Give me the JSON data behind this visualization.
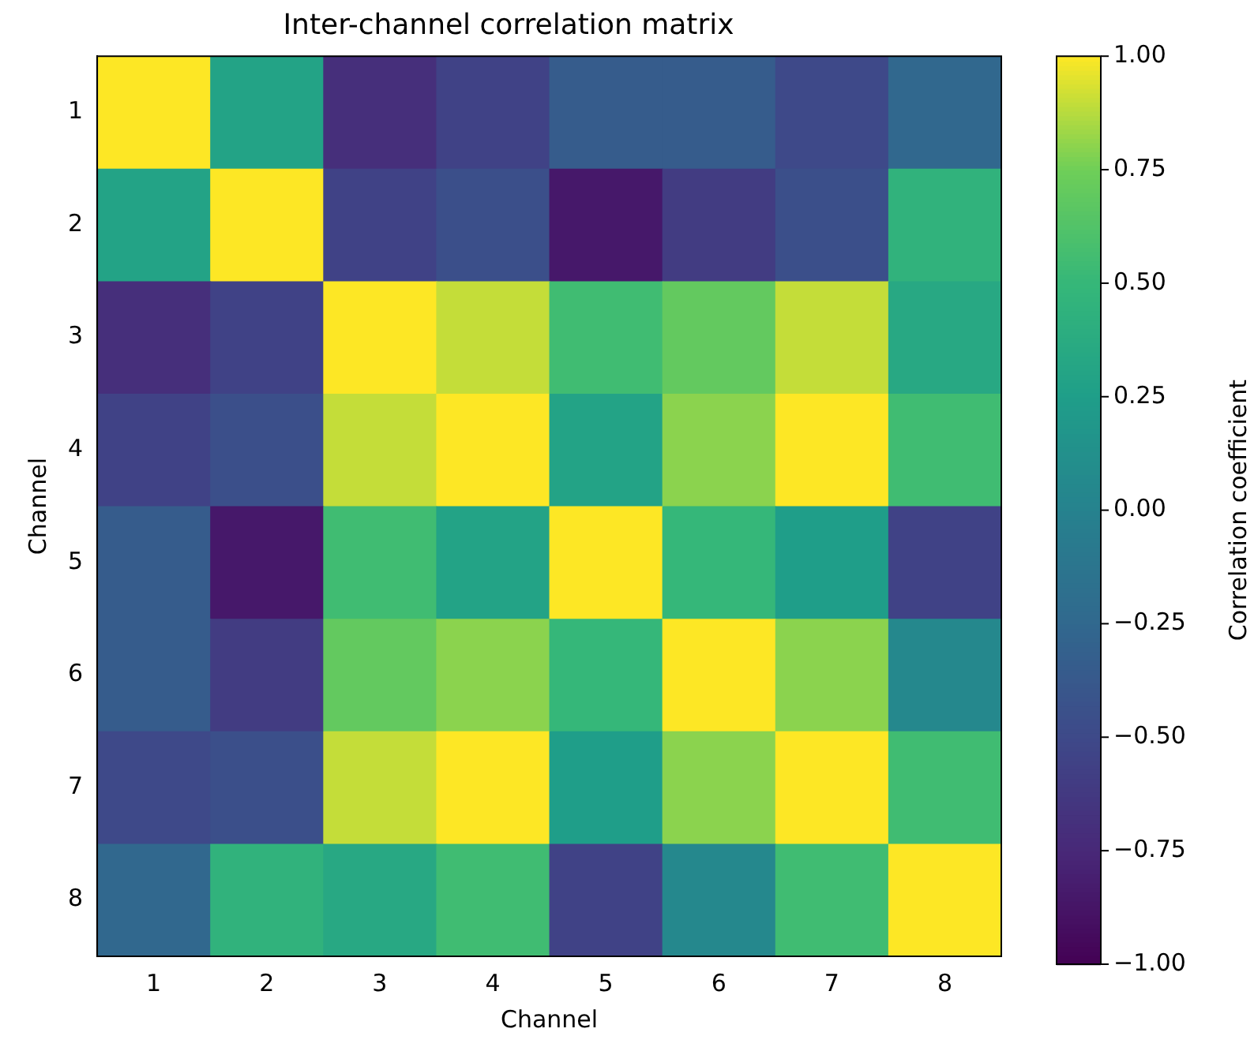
{
  "chart_data": {
    "type": "heatmap",
    "title": "Inter-channel correlation matrix",
    "xlabel": "Channel",
    "ylabel": "Channel",
    "clabel": "Correlation coefficient",
    "categories": [
      "1",
      "2",
      "3",
      "4",
      "5",
      "6",
      "7",
      "8"
    ],
    "y_categories": [
      "1",
      "2",
      "3",
      "4",
      "5",
      "6",
      "7",
      "8"
    ],
    "cells": [
      [
        1,
        0.3,
        -0.7,
        -0.55,
        -0.35,
        -0.35,
        -0.5,
        -0.25
      ],
      [
        0.3,
        1,
        -0.55,
        -0.45,
        -0.85,
        -0.6,
        -0.45,
        0.45
      ],
      [
        -0.7,
        -0.55,
        1,
        0.9,
        0.55,
        0.7,
        0.9,
        0.35
      ],
      [
        -0.55,
        -0.45,
        0.9,
        1,
        0.3,
        0.8,
        1,
        0.55
      ],
      [
        -0.35,
        -0.85,
        0.55,
        0.3,
        1,
        0.5,
        0.25,
        -0.55
      ],
      [
        -0.35,
        -0.6,
        0.7,
        0.8,
        0.5,
        1,
        0.8,
        0.05
      ],
      [
        -0.5,
        -0.45,
        0.9,
        1,
        0.25,
        0.8,
        1,
        0.55
      ],
      [
        -0.25,
        0.45,
        0.35,
        0.55,
        -0.55,
        0.05,
        0.55,
        1
      ]
    ],
    "clim": [
      -1,
      1
    ],
    "cticks": [
      {
        "value": -1,
        "label": "−1.00"
      },
      {
        "value": -0.75,
        "label": "−0.75"
      },
      {
        "value": -0.5,
        "label": "−0.50"
      },
      {
        "value": -0.25,
        "label": "−0.25"
      },
      {
        "value": 0,
        "label": "0.00"
      },
      {
        "value": 0.25,
        "label": "0.25"
      },
      {
        "value": 0.5,
        "label": "0.50"
      },
      {
        "value": 0.75,
        "label": "0.75"
      },
      {
        "value": 1,
        "label": "1.00"
      }
    ],
    "grid": false
  }
}
